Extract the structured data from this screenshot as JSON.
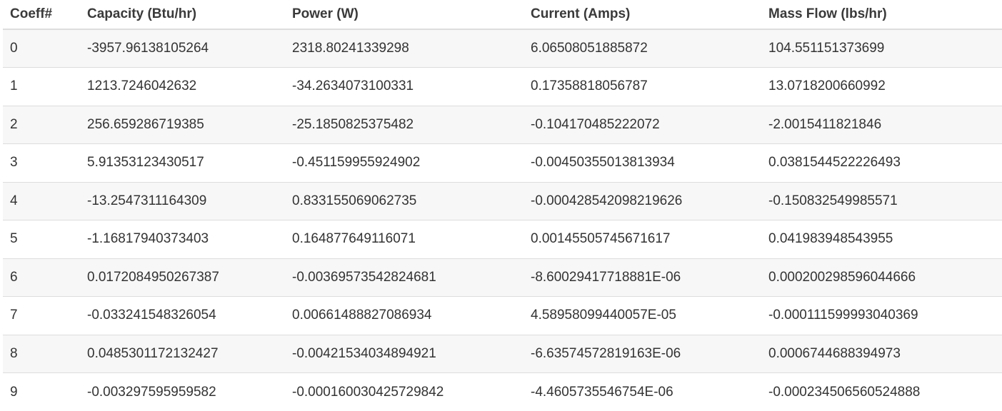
{
  "table": {
    "headers": [
      "Coeff#",
      "Capacity (Btu/hr)",
      "Power (W)",
      "Current (Amps)",
      "Mass Flow (lbs/hr)"
    ],
    "rows": [
      [
        "0",
        "-3957.96138105264",
        "2318.80241339298",
        "6.06508051885872",
        "104.551151373699"
      ],
      [
        "1",
        "1213.7246042632",
        "-34.2634073100331",
        "0.17358818056787",
        "13.0718200660992"
      ],
      [
        "2",
        "256.659286719385",
        "-25.1850825375482",
        "-0.104170485222072",
        "-2.0015411821846"
      ],
      [
        "3",
        "5.91353123430517",
        "-0.451159955924902",
        "-0.00450355013813934",
        "0.0381544522226493"
      ],
      [
        "4",
        "-13.2547311164309",
        "0.833155069062735",
        "-0.000428542098219626",
        "-0.150832549985571"
      ],
      [
        "5",
        "-1.16817940373403",
        "0.164877649116071",
        "0.00145505745671617",
        "0.041983948543955"
      ],
      [
        "6",
        "0.0172084950267387",
        "-0.00369573542824681",
        "-8.60029417718881E-06",
        "0.000200298596044666"
      ],
      [
        "7",
        "-0.033241548326054",
        "0.00661488827086934",
        "4.58958099440057E-05",
        "-0.000111599993040369"
      ],
      [
        "8",
        "0.0485301172132427",
        "-0.00421534034894921",
        "-6.63574572819163E-06",
        "0.0006744688394973"
      ],
      [
        "9",
        "-0.003297595959582",
        "-0.000160030425729842",
        "-4.4605735546754E-06",
        "-0.000234506560524888"
      ]
    ]
  }
}
